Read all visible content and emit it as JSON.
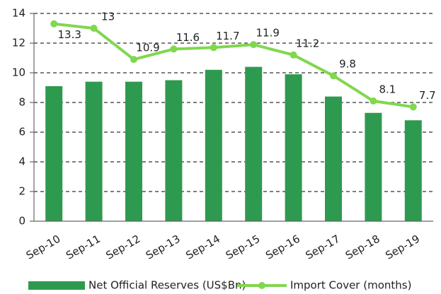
{
  "chart_data": {
    "type": "combo",
    "categories": [
      "Sep-10",
      "Sep-11",
      "Sep-12",
      "Sep-13",
      "Sep-14",
      "Sep-15",
      "Sep-16",
      "Sep-17",
      "Sep-18",
      "Sep-19"
    ],
    "series": [
      {
        "name": "Net Official Reserves (US$Bn)",
        "type": "bar",
        "color": "#2e9a50",
        "values": [
          9.1,
          9.4,
          9.4,
          9.5,
          10.2,
          10.4,
          9.9,
          8.4,
          7.3,
          6.8
        ]
      },
      {
        "name": "Import Cover (months)",
        "type": "line",
        "color": "#7fd84e",
        "values": [
          13.3,
          13.0,
          10.9,
          11.6,
          11.7,
          11.9,
          11.2,
          9.8,
          8.1,
          7.7
        ]
      }
    ],
    "ylim": [
      0,
      14
    ],
    "yticks": [
      0,
      2,
      4,
      6,
      8,
      10,
      12,
      14
    ],
    "grid": true,
    "legend": "bottom"
  }
}
